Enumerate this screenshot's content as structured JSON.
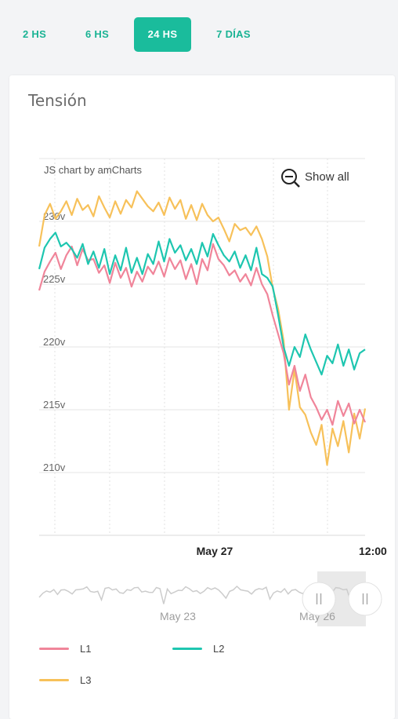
{
  "tabs": [
    {
      "label": "2 HS",
      "active": false
    },
    {
      "label": "6 HS",
      "active": false
    },
    {
      "label": "24 HS",
      "active": true
    },
    {
      "label": "7 DÍAS",
      "active": false
    }
  ],
  "card": {
    "title": "Tensión"
  },
  "chart_controls": {
    "credit": "JS chart by amCharts",
    "show_all": "Show all"
  },
  "chart_data": {
    "type": "line",
    "title": "Tensión",
    "ylim": [
      205,
      235
    ],
    "yticks": [
      "230v",
      "225v",
      "220v",
      "215v",
      "210v"
    ],
    "xticks": [
      "May 27",
      "12:00"
    ],
    "grid": true,
    "legend_placement": "bottom",
    "scrollbar_labels": [
      "May 23",
      "May 26"
    ],
    "series": [
      {
        "name": "L1",
        "color": "#f0859a",
        "values": [
          224.5,
          226,
          226.8,
          227.5,
          226.2,
          227.3,
          228,
          226.5,
          227.8,
          226.9,
          227,
          225.9,
          226.5,
          225.1,
          226.7,
          225.5,
          226.3,
          224.8,
          226,
          225.2,
          226.4,
          225.8,
          226.8,
          225.6,
          227.1,
          226.2,
          226.9,
          225.4,
          226.6,
          225,
          227,
          226.1,
          228.2,
          227,
          226.5,
          225.7,
          226.1,
          225.2,
          225.8,
          224.9,
          226.3,
          225,
          224.2,
          222.5,
          221,
          219.5,
          217,
          218.5,
          216.5,
          217.8,
          216,
          215.2,
          214.2,
          215,
          213.8,
          215.7,
          214.5,
          215.5,
          213.9,
          215,
          214
        ]
      },
      {
        "name": "L2",
        "color": "#1ec6b0",
        "values": [
          226.2,
          227.9,
          228.6,
          229.1,
          228,
          228.3,
          227.8,
          227.1,
          228.2,
          226.6,
          227.6,
          226.3,
          227.8,
          225.8,
          227.3,
          226.1,
          227.9,
          225.9,
          227.1,
          225.8,
          227.4,
          226.6,
          228.4,
          226.8,
          228.6,
          227.5,
          228.1,
          226.9,
          227.8,
          226.6,
          228.3,
          227.2,
          229,
          228.1,
          227.3,
          226.8,
          227.6,
          226.3,
          227.3,
          226.1,
          227.9,
          225.8,
          225.5,
          224.8,
          222.5,
          220,
          218.5,
          220,
          219.2,
          221,
          219.8,
          218.8,
          217.8,
          219.3,
          218.7,
          220.2,
          218.5,
          219.8,
          218.2,
          219.5,
          219.8
        ]
      },
      {
        "name": "L3",
        "color": "#f7c15a",
        "values": [
          228,
          230.5,
          231.4,
          230.2,
          230.8,
          231.6,
          230.5,
          231.8,
          230.9,
          231.3,
          230.4,
          232,
          231.1,
          230.3,
          231.6,
          230.6,
          231.7,
          231.1,
          232.4,
          231.8,
          231.2,
          230.8,
          231.5,
          230.5,
          231.9,
          231,
          231.7,
          230.2,
          231.3,
          230.1,
          231.4,
          230.5,
          230,
          230.3,
          229.4,
          228.4,
          229.8,
          229.3,
          229.5,
          228.9,
          229.6,
          228.6,
          227.2,
          224.7,
          223,
          220.5,
          215,
          218.2,
          215.2,
          214.6,
          213.2,
          212.2,
          213.8,
          210.6,
          213.5,
          212.1,
          214.1,
          211.6,
          214.7,
          212.7,
          215.1
        ]
      }
    ]
  },
  "legend": [
    {
      "label": "L1",
      "color": "#f0859a"
    },
    {
      "label": "L2",
      "color": "#1ec6b0"
    },
    {
      "label": "L3",
      "color": "#f7c15a"
    }
  ]
}
